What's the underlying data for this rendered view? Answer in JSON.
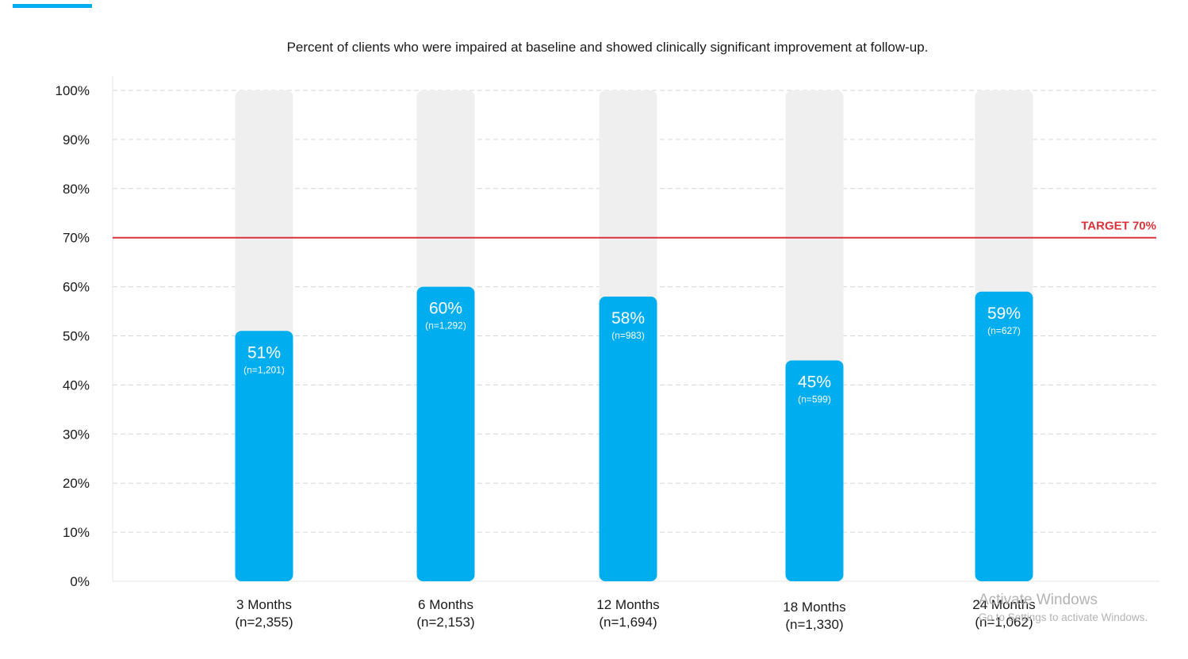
{
  "chart_data": {
    "type": "bar",
    "title": "Percent of clients who were impaired at baseline and showed clinically significant improvement at follow-up.",
    "categories": [
      "3 Months",
      "6 Months",
      "12 Months",
      "18 Months",
      "24 Months"
    ],
    "category_counts": [
      "(n=2,355)",
      "(n=2,153)",
      "(n=1,694)",
      "(n=1,330)",
      "(n=1,062)"
    ],
    "values": [
      51,
      60,
      58,
      45,
      59
    ],
    "value_labels": [
      "51%",
      "60%",
      "58%",
      "45%",
      "59%"
    ],
    "bar_counts": [
      "(n=1,201)",
      "(n=1,292)",
      "(n=983)",
      "(n=599)",
      "(n=627)"
    ],
    "ylim": [
      0,
      100
    ],
    "yticks": [
      "0%",
      "10%",
      "20%",
      "30%",
      "40%",
      "50%",
      "60%",
      "70%",
      "80%",
      "90%",
      "100%"
    ],
    "target": {
      "value": 70,
      "label": "TARGET 70%"
    },
    "grid": true,
    "colors": {
      "bar": "#00aeef",
      "bar_track": "#efefef",
      "target": "#d9343d",
      "grid": "#d6d6d6",
      "axis_text": "#1a1a1a"
    }
  },
  "watermark": {
    "title": "Activate Windows",
    "subtitle": "Go to Settings to activate Windows."
  }
}
